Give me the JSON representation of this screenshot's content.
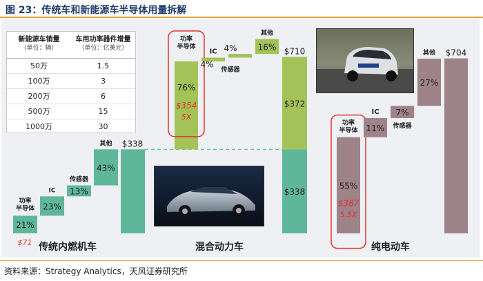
{
  "header": {
    "title": "图 23：传统车和新能源车半导体用量拆解"
  },
  "footer": {
    "source": "资料来源：Strategy Analytics，天风证券研究所"
  },
  "table": {
    "headers": [
      {
        "label": "新能源车销量",
        "unit": "（单位：辆）"
      },
      {
        "label": "车用功率器件增量",
        "unit": "（单位：亿美元）"
      }
    ],
    "rows": [
      [
        "50万",
        "1.5"
      ],
      [
        "100万",
        "3"
      ],
      [
        "200万",
        "6"
      ],
      [
        "500万",
        "15"
      ],
      [
        "1000万",
        "30"
      ]
    ]
  },
  "chart_data": {
    "type": "bar",
    "subtype": "waterfall",
    "y_unit": "USD",
    "groups": [
      {
        "name": "传统内燃机车",
        "total": 338,
        "total_label": "$338",
        "segments": [
          {
            "label": "功率\n半导体",
            "percent_label": "21%",
            "value": 71,
            "value_label": "$71"
          },
          {
            "label": "IC",
            "percent_label": "23%",
            "value": 78
          },
          {
            "label": "传感器",
            "percent_label": "13%",
            "value": 44
          },
          {
            "label": "其他",
            "percent_label": "43%",
            "value": 145
          }
        ]
      },
      {
        "name": "混合动力车",
        "total": 710,
        "total_label": "$710",
        "base": 338,
        "base_label": "$338",
        "increment": 372,
        "increment_label": "$372",
        "segments": [
          {
            "label": "功率\n半导体",
            "percent_label": "76%",
            "value": 354,
            "value_label": "$354",
            "multiple_label": "5X"
          },
          {
            "label": "IC",
            "percent_label": "4%",
            "value": 15
          },
          {
            "label": "传感器",
            "percent_label": "4%",
            "value": 15
          },
          {
            "label": "其他",
            "percent_label": "16%",
            "value": 60
          }
        ]
      },
      {
        "name": "纯电动车",
        "total": 704,
        "total_label": "$704",
        "segments": [
          {
            "label": "功率\n半导体",
            "percent_label": "55%",
            "value": 387,
            "value_label": "$387",
            "multiple_label": "5.5X"
          },
          {
            "label": "IC",
            "percent_label": "11%",
            "value": 77
          },
          {
            "label": "传感器",
            "percent_label": "7%",
            "value": 49
          },
          {
            "label": "其他",
            "percent_label": "27%",
            "value": 190
          }
        ]
      }
    ],
    "colors": {
      "ice": "#5fb79a",
      "hybrid": "#a3c257",
      "ev": "#9e8388",
      "highlight": "#e3322b",
      "connector": "#6fc2a6"
    }
  },
  "photos": [
    {
      "name": "photo-hybrid-car",
      "icon": "car-photo"
    },
    {
      "name": "photo-electric-car",
      "icon": "car-photo"
    }
  ]
}
